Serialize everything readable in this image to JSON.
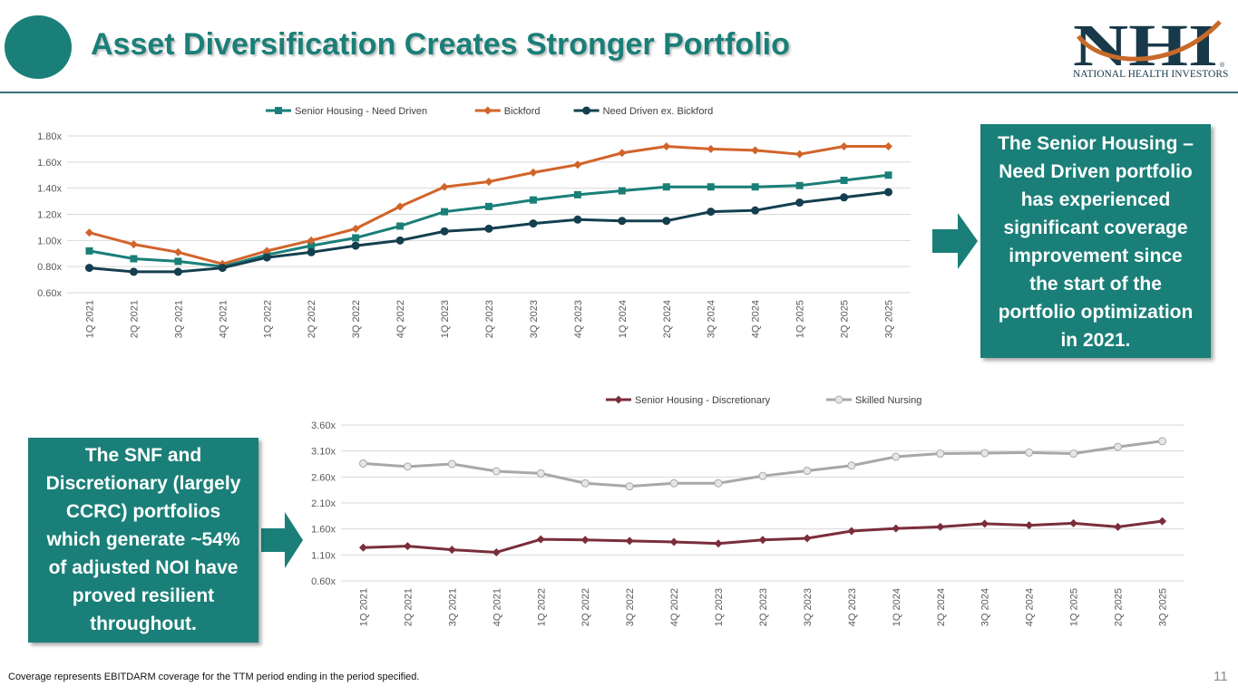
{
  "slide": {
    "title": "Asset Diversification Creates Stronger Portfolio",
    "footnote": "Coverage represents EBITDARM coverage for the TTM period ending in the period specified.",
    "page_number": "11"
  },
  "logo": {
    "mark": "NHI",
    "name": "NATIONAL HEALTH INVESTORS",
    "registered": "®",
    "colors": {
      "navy": "#18394a",
      "orange": "#c86a2a"
    }
  },
  "callouts": {
    "top_right": "The Senior Housing – Need Driven portfolio has experienced significant coverage improvement since the start of the portfolio optimization in 2021.",
    "top_right_lines": [
      "The Senior Housing –",
      "Need Driven portfolio",
      "has experienced",
      "significant coverage",
      "improvement since",
      "the start of the",
      "portfolio optimization",
      "in 2021."
    ],
    "bottom_left": "The SNF and Discretionary (largely CCRC) portfolios which generate ~54% of adjusted NOI have proved resilient throughout.",
    "bottom_left_lines": [
      "The SNF and",
      "Discretionary (largely",
      "CCRC) portfolios",
      "which generate ~54%",
      "of adjusted NOI have",
      "proved resilient",
      "throughout."
    ]
  },
  "colors": {
    "accent": "#1a7f78",
    "title": "#1a7f78",
    "rule": "#3c6e7f"
  },
  "chart_data": [
    {
      "type": "line",
      "title": "",
      "xlabel": "",
      "ylabel": "",
      "categories": [
        "1Q 2021",
        "2Q 2021",
        "3Q 2021",
        "4Q 2021",
        "1Q 2022",
        "2Q 2022",
        "3Q 2022",
        "4Q 2022",
        "1Q 2023",
        "2Q 2023",
        "3Q 2023",
        "4Q 2023",
        "1Q 2024",
        "2Q 2024",
        "3Q 2024",
        "4Q 2024",
        "1Q 2025",
        "2Q 2025",
        "3Q 2025"
      ],
      "ylim": [
        0.6,
        1.8
      ],
      "yticks": [
        0.6,
        0.8,
        1.0,
        1.2,
        1.4,
        1.6,
        1.8
      ],
      "ytick_labels": [
        "0.60x",
        "0.80x",
        "1.00x",
        "1.20x",
        "1.40x",
        "1.60x",
        "1.80x"
      ],
      "grid": true,
      "legend": "top-center",
      "series": [
        {
          "name": "Senior Housing - Need Driven",
          "color": "#1a7f78",
          "marker": "square",
          "values": [
            0.92,
            0.86,
            0.84,
            0.8,
            0.89,
            0.96,
            1.02,
            1.11,
            1.22,
            1.26,
            1.31,
            1.35,
            1.38,
            1.41,
            1.41,
            1.41,
            1.42,
            1.46,
            1.5
          ]
        },
        {
          "name": "Bickford",
          "color": "#d2642a",
          "marker": "diamond",
          "values": [
            1.06,
            0.97,
            0.91,
            0.82,
            0.92,
            1.0,
            1.09,
            1.26,
            1.41,
            1.45,
            1.52,
            1.58,
            1.67,
            1.72,
            1.7,
            1.69,
            1.66,
            1.72,
            1.72
          ]
        },
        {
          "name": "Need Driven ex. Bickford",
          "color": "#143f4f",
          "marker": "circle",
          "values": [
            0.79,
            0.76,
            0.76,
            0.79,
            0.87,
            0.91,
            0.96,
            1.0,
            1.07,
            1.09,
            1.13,
            1.16,
            1.15,
            1.15,
            1.22,
            1.23,
            1.29,
            1.33,
            1.37
          ]
        }
      ]
    },
    {
      "type": "line",
      "title": "",
      "xlabel": "",
      "ylabel": "",
      "categories": [
        "1Q 2021",
        "2Q 2021",
        "3Q 2021",
        "4Q 2021",
        "1Q 2022",
        "2Q 2022",
        "3Q 2022",
        "4Q 2022",
        "1Q 2023",
        "2Q 2023",
        "3Q 2023",
        "4Q 2023",
        "1Q 2024",
        "2Q 2024",
        "3Q 2024",
        "4Q 2024",
        "1Q 2025",
        "2Q 2025",
        "3Q 2025"
      ],
      "ylim": [
        0.6,
        3.6
      ],
      "yticks": [
        0.6,
        1.1,
        1.6,
        2.1,
        2.6,
        3.1,
        3.6
      ],
      "ytick_labels": [
        "0.60x",
        "1.10x",
        "1.60x",
        "2.10x",
        "2.60x",
        "3.10x",
        "3.60x"
      ],
      "grid": true,
      "legend": "top-center",
      "series": [
        {
          "name": "Senior Housing - Discretionary",
          "color": "#7a2e3a",
          "marker": "diamond",
          "values": [
            1.24,
            1.27,
            1.2,
            1.15,
            1.4,
            1.39,
            1.37,
            1.35,
            1.32,
            1.39,
            1.42,
            1.56,
            1.61,
            1.64,
            1.7,
            1.67,
            1.71,
            1.64,
            1.75
          ]
        },
        {
          "name": "Skilled Nursing",
          "color": "#a8a8a8",
          "marker": "circle",
          "values": [
            2.86,
            2.8,
            2.85,
            2.71,
            2.67,
            2.48,
            2.42,
            2.48,
            2.48,
            2.62,
            2.72,
            2.82,
            2.99,
            3.05,
            3.06,
            3.07,
            3.05,
            3.18,
            3.29
          ]
        }
      ]
    }
  ]
}
